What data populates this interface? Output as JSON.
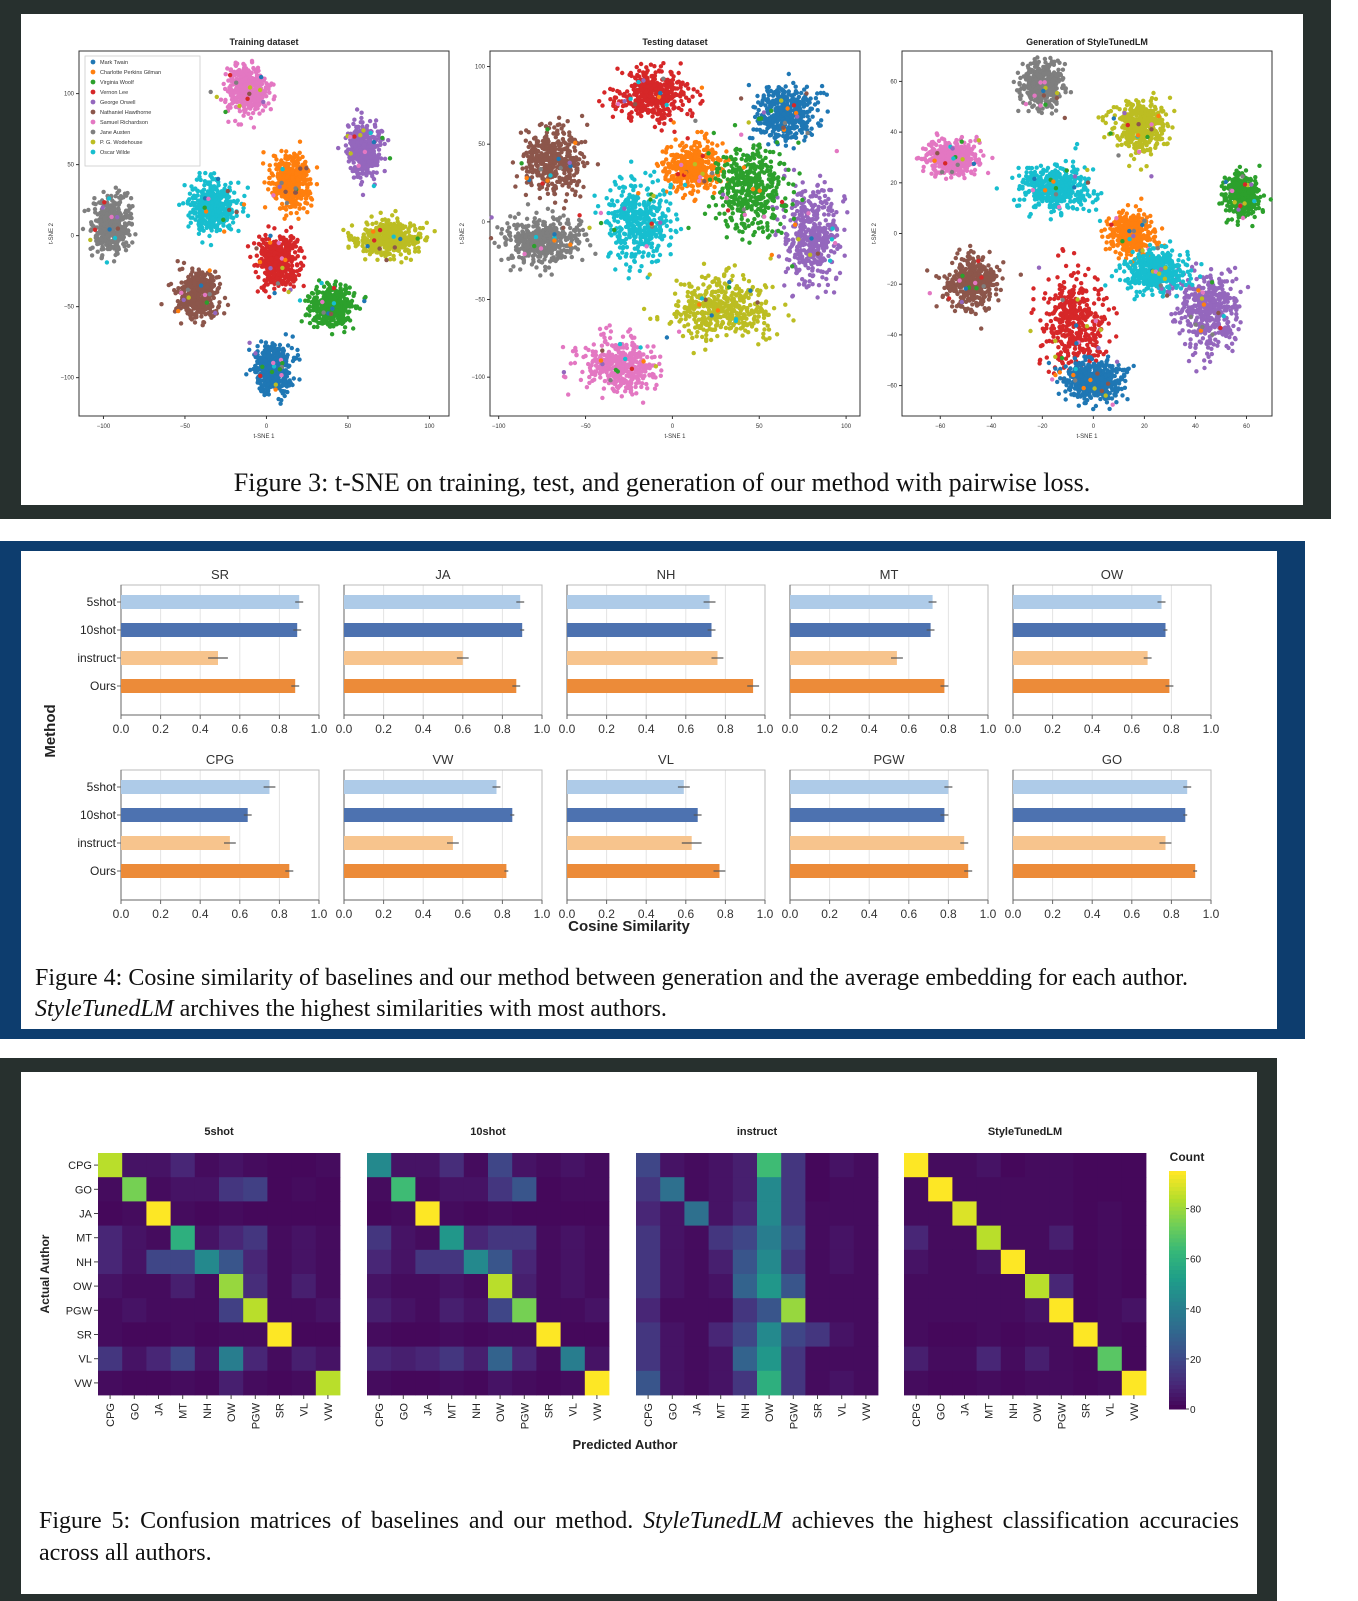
{
  "colors": {
    "fig3_border": "#27302e",
    "fig4_border": "#0d3d6e",
    "fig5_border": "#27302e",
    "bar_5shot": "#aecbe8",
    "bar_10shot": "#4d72b0",
    "bar_instruct": "#f7c48d",
    "bar_ours": "#ec8b39"
  },
  "figure3": {
    "caption": "Figure 3: t-SNE on training, test, and generation of our method with pairwise loss.",
    "xlabel": "t-SNE 1",
    "ylabel": "t-SNE 2",
    "legend": [
      {
        "name": "Mark Twain",
        "color": "#1f77b4"
      },
      {
        "name": "Charlotte Perkins Gilman",
        "color": "#ff7f0e"
      },
      {
        "name": "Virginia Woolf",
        "color": "#2ca02c"
      },
      {
        "name": "Vernon Lee",
        "color": "#d62728"
      },
      {
        "name": "George Orwell",
        "color": "#9467bd"
      },
      {
        "name": "Nathaniel Hawthorne",
        "color": "#8c564b"
      },
      {
        "name": "Samuel Richardson",
        "color": "#e377c2"
      },
      {
        "name": "Jane Austen",
        "color": "#7f7f7f"
      },
      {
        "name": "P. G. Wodehouse",
        "color": "#bcbd22"
      },
      {
        "name": "Oscar Wilde",
        "color": "#17becf"
      }
    ],
    "plots": [
      {
        "title": "Training dataset",
        "xlim": [
          -115,
          112
        ],
        "ylim": [
          -127,
          130
        ],
        "xticks": [
          -100,
          -50,
          0,
          50,
          100
        ],
        "yticks": [
          100,
          50,
          0,
          -50,
          -100
        ],
        "clusters": [
          {
            "c": 6,
            "x": -12,
            "y": 103,
            "rx": 12,
            "ry": 16
          },
          {
            "c": 4,
            "x": 60,
            "y": 60,
            "rx": 10,
            "ry": 18
          },
          {
            "c": 1,
            "x": 15,
            "y": 38,
            "rx": 12,
            "ry": 18
          },
          {
            "c": 9,
            "x": -33,
            "y": 20,
            "rx": 13,
            "ry": 18
          },
          {
            "c": 7,
            "x": -95,
            "y": 8,
            "rx": 12,
            "ry": 18
          },
          {
            "c": 8,
            "x": 75,
            "y": -2,
            "rx": 20,
            "ry": 12
          },
          {
            "c": 3,
            "x": 7,
            "y": -18,
            "rx": 12,
            "ry": 18
          },
          {
            "c": 5,
            "x": -42,
            "y": -42,
            "rx": 12,
            "ry": 16
          },
          {
            "c": 2,
            "x": 40,
            "y": -50,
            "rx": 13,
            "ry": 14
          },
          {
            "c": 0,
            "x": 3,
            "y": -94,
            "rx": 12,
            "ry": 18
          }
        ]
      },
      {
        "title": "Testing dataset",
        "xlim": [
          -105,
          108
        ],
        "ylim": [
          -125,
          110
        ],
        "xticks": [
          -100,
          -50,
          0,
          50,
          100
        ],
        "yticks": [
          100,
          50,
          0,
          -50,
          -100
        ],
        "clusters": [
          {
            "c": 3,
            "x": -12,
            "y": 82,
            "rx": 20,
            "ry": 16
          },
          {
            "c": 5,
            "x": -68,
            "y": 40,
            "rx": 17,
            "ry": 22
          },
          {
            "c": 1,
            "x": 12,
            "y": 35,
            "rx": 15,
            "ry": 15
          },
          {
            "c": 0,
            "x": 65,
            "y": 70,
            "rx": 18,
            "ry": 17
          },
          {
            "c": 7,
            "x": -75,
            "y": -12,
            "rx": 22,
            "ry": 14
          },
          {
            "c": 9,
            "x": -20,
            "y": 0,
            "rx": 18,
            "ry": 25
          },
          {
            "c": 4,
            "x": 80,
            "y": -10,
            "rx": 16,
            "ry": 30
          },
          {
            "c": 8,
            "x": 30,
            "y": -55,
            "rx": 30,
            "ry": 20
          },
          {
            "c": 2,
            "x": 45,
            "y": 20,
            "rx": 22,
            "ry": 30
          },
          {
            "c": 6,
            "x": -30,
            "y": -92,
            "rx": 20,
            "ry": 16
          }
        ]
      },
      {
        "title": "Generation of StyleTunedLM",
        "xlim": [
          -75,
          70
        ],
        "ylim": [
          -72,
          72
        ],
        "xticks": [
          -60,
          -40,
          -20,
          0,
          20,
          40,
          60
        ],
        "yticks": [
          60,
          40,
          20,
          0,
          -20,
          -40,
          -60
        ],
        "clusters": [
          {
            "c": 7,
            "x": -20,
            "y": 58,
            "rx": 8,
            "ry": 9
          },
          {
            "c": 6,
            "x": -55,
            "y": 30,
            "rx": 10,
            "ry": 7
          },
          {
            "c": 8,
            "x": 18,
            "y": 42,
            "rx": 9,
            "ry": 10
          },
          {
            "c": 9,
            "x": -15,
            "y": 18,
            "rx": 14,
            "ry": 9
          },
          {
            "c": 1,
            "x": 15,
            "y": 0,
            "rx": 8,
            "ry": 8
          },
          {
            "c": 2,
            "x": 58,
            "y": 15,
            "rx": 6,
            "ry": 8
          },
          {
            "c": 5,
            "x": -48,
            "y": -20,
            "rx": 10,
            "ry": 10
          },
          {
            "c": 3,
            "x": -8,
            "y": -35,
            "rx": 12,
            "ry": 20
          },
          {
            "c": 4,
            "x": 45,
            "y": -30,
            "rx": 12,
            "ry": 15
          },
          {
            "c": 9,
            "x": 25,
            "y": -15,
            "rx": 12,
            "ry": 8
          },
          {
            "c": 0,
            "x": 0,
            "y": -58,
            "rx": 12,
            "ry": 8
          }
        ]
      }
    ]
  },
  "figure4": {
    "caption_prefix": "Figure 4: Cosine similarity of baselines and our method between generation and the average embedding for each author. ",
    "caption_em": "StyleTunedLM",
    "caption_suffix": " archives the highest similarities with most authors.",
    "xlabel": "Cosine Similarity",
    "ylabel": "Method"
  },
  "figure5": {
    "caption_prefix": "Figure 5: Confusion matrices of baselines and our method. ",
    "caption_em": "StyleTunedLM",
    "caption_suffix": " achieves the highest classification accuracies across all authors.",
    "xlabel": "Predicted Author",
    "ylabel": "Actual Author",
    "colorbar_title": "Count",
    "colorbar_ticks": [
      80,
      60,
      40,
      20,
      0
    ]
  },
  "chart_data": [
    {
      "type": "bar",
      "orientation": "horizontal",
      "categories": [
        "5shot",
        "10shot",
        "instruct",
        "Ours"
      ],
      "xlim": [
        0,
        1.0
      ],
      "xticks": [
        "0.0",
        "0.2",
        "0.4",
        "0.6",
        "0.8",
        "1.0"
      ],
      "panels": [
        {
          "title": "SR",
          "values": [
            0.9,
            0.89,
            0.49,
            0.88
          ],
          "errors": [
            0.02,
            0.02,
            0.05,
            0.02
          ]
        },
        {
          "title": "JA",
          "values": [
            0.89,
            0.9,
            0.6,
            0.87
          ],
          "errors": [
            0.02,
            0.01,
            0.03,
            0.02
          ]
        },
        {
          "title": "NH",
          "values": [
            0.72,
            0.73,
            0.76,
            0.94
          ],
          "errors": [
            0.03,
            0.02,
            0.03,
            0.03
          ]
        },
        {
          "title": "MT",
          "values": [
            0.72,
            0.71,
            0.54,
            0.78
          ],
          "errors": [
            0.02,
            0.02,
            0.03,
            0.02
          ]
        },
        {
          "title": "OW",
          "values": [
            0.75,
            0.77,
            0.68,
            0.79
          ],
          "errors": [
            0.02,
            0.01,
            0.02,
            0.02
          ]
        },
        {
          "title": "CPG",
          "values": [
            0.75,
            0.64,
            0.55,
            0.85
          ],
          "errors": [
            0.03,
            0.02,
            0.03,
            0.02
          ]
        },
        {
          "title": "VW",
          "values": [
            0.77,
            0.85,
            0.55,
            0.82
          ],
          "errors": [
            0.02,
            0.01,
            0.03,
            0.01
          ]
        },
        {
          "title": "VL",
          "values": [
            0.59,
            0.66,
            0.63,
            0.77
          ],
          "errors": [
            0.03,
            0.02,
            0.05,
            0.03
          ]
        },
        {
          "title": "PGW",
          "values": [
            0.8,
            0.78,
            0.88,
            0.9
          ],
          "errors": [
            0.02,
            0.02,
            0.02,
            0.02
          ]
        },
        {
          "title": "GO",
          "values": [
            0.88,
            0.87,
            0.77,
            0.92
          ],
          "errors": [
            0.02,
            0.01,
            0.03,
            0.01
          ]
        }
      ]
    },
    {
      "type": "heatmap",
      "authors": [
        "CPG",
        "GO",
        "JA",
        "MT",
        "NH",
        "OW",
        "PGW",
        "SR",
        "VL",
        "VW"
      ],
      "clim": [
        0,
        95
      ],
      "matrices": [
        {
          "title": "5shot",
          "values": [
            [
              85,
              5,
              5,
              10,
              3,
              5,
              3,
              2,
              2,
              3
            ],
            [
              3,
              75,
              3,
              5,
              5,
              15,
              18,
              2,
              3,
              2
            ],
            [
              2,
              3,
              95,
              3,
              2,
              3,
              2,
              2,
              2,
              2
            ],
            [
              10,
              5,
              3,
              60,
              5,
              10,
              15,
              3,
              5,
              3
            ],
            [
              10,
              5,
              20,
              20,
              45,
              25,
              10,
              3,
              5,
              3
            ],
            [
              5,
              3,
              3,
              8,
              3,
              80,
              12,
              3,
              8,
              3
            ],
            [
              3,
              5,
              3,
              3,
              3,
              18,
              85,
              3,
              3,
              5
            ],
            [
              3,
              2,
              2,
              3,
              2,
              3,
              3,
              95,
              2,
              2
            ],
            [
              15,
              5,
              10,
              20,
              5,
              40,
              10,
              3,
              8,
              5
            ],
            [
              3,
              2,
              2,
              3,
              2,
              8,
              3,
              2,
              3,
              85
            ]
          ]
        },
        {
          "title": "10shot",
          "values": [
            [
              45,
              5,
              5,
              12,
              3,
              20,
              5,
              3,
              5,
              3
            ],
            [
              3,
              65,
              3,
              5,
              5,
              15,
              25,
              2,
              3,
              3
            ],
            [
              2,
              3,
              95,
              3,
              2,
              3,
              2,
              2,
              2,
              2
            ],
            [
              15,
              5,
              3,
              50,
              10,
              15,
              15,
              3,
              5,
              3
            ],
            [
              10,
              5,
              15,
              15,
              45,
              25,
              10,
              3,
              5,
              3
            ],
            [
              5,
              3,
              3,
              5,
              3,
              85,
              8,
              3,
              5,
              3
            ],
            [
              8,
              5,
              3,
              8,
              5,
              20,
              75,
              3,
              3,
              5
            ],
            [
              3,
              2,
              2,
              3,
              2,
              3,
              3,
              95,
              2,
              2
            ],
            [
              10,
              8,
              10,
              15,
              8,
              30,
              10,
              3,
              40,
              5
            ],
            [
              3,
              2,
              2,
              3,
              2,
              5,
              3,
              2,
              3,
              95
            ]
          ]
        },
        {
          "title": "instruct",
          "values": [
            [
              20,
              5,
              3,
              5,
              8,
              65,
              15,
              2,
              5,
              3
            ],
            [
              15,
              35,
              3,
              5,
              8,
              45,
              15,
              2,
              3,
              3
            ],
            [
              10,
              5,
              35,
              5,
              10,
              45,
              15,
              3,
              3,
              3
            ],
            [
              15,
              5,
              3,
              15,
              20,
              40,
              20,
              3,
              5,
              3
            ],
            [
              15,
              5,
              3,
              8,
              25,
              45,
              15,
              3,
              5,
              3
            ],
            [
              15,
              5,
              3,
              5,
              30,
              50,
              25,
              3,
              3,
              3
            ],
            [
              10,
              3,
              3,
              3,
              15,
              25,
              80,
              3,
              3,
              3
            ],
            [
              15,
              5,
              3,
              10,
              20,
              45,
              20,
              15,
              5,
              3
            ],
            [
              15,
              5,
              3,
              5,
              30,
              50,
              15,
              3,
              3,
              3
            ],
            [
              25,
              5,
              3,
              5,
              15,
              60,
              15,
              3,
              5,
              3
            ]
          ]
        },
        {
          "title": "StyleTunedLM",
          "values": [
            [
              95,
              3,
              3,
              5,
              2,
              3,
              3,
              2,
              2,
              2
            ],
            [
              3,
              95,
              3,
              3,
              3,
              3,
              3,
              2,
              2,
              2
            ],
            [
              3,
              3,
              90,
              3,
              3,
              3,
              3,
              2,
              3,
              2
            ],
            [
              10,
              3,
              3,
              85,
              3,
              3,
              8,
              2,
              3,
              2
            ],
            [
              5,
              3,
              3,
              5,
              95,
              3,
              3,
              2,
              3,
              2
            ],
            [
              3,
              3,
              3,
              3,
              3,
              85,
              10,
              2,
              3,
              2
            ],
            [
              3,
              3,
              3,
              3,
              3,
              5,
              95,
              2,
              3,
              5
            ],
            [
              3,
              2,
              2,
              3,
              2,
              3,
              3,
              95,
              3,
              2
            ],
            [
              8,
              3,
              3,
              10,
              3,
              8,
              3,
              2,
              70,
              2
            ],
            [
              3,
              2,
              2,
              3,
              2,
              3,
              3,
              2,
              3,
              95
            ]
          ]
        }
      ]
    }
  ]
}
